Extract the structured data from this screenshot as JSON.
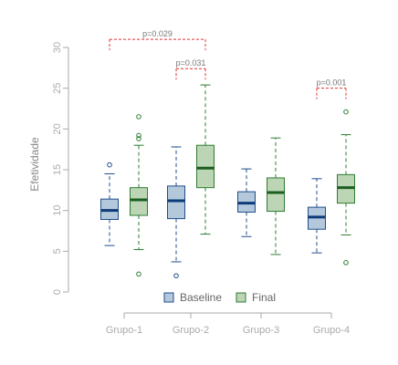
{
  "chart_data": {
    "type": "boxplot",
    "ylabel": "Efetividade",
    "ylim": [
      0,
      30
    ],
    "yticks": [
      0,
      5,
      10,
      15,
      20,
      25,
      30
    ],
    "categories": [
      "Grupo-1",
      "Grupo-2",
      "Grupo-3",
      "Grupo-4"
    ],
    "series": [
      {
        "name": "Baseline",
        "fill": "#b4c8dc",
        "stroke": "#1f4e8c",
        "median_color": "#0d3c78",
        "boxes": [
          {
            "whisker_low": 5.7,
            "q1": 8.9,
            "median": 10.0,
            "q3": 11.4,
            "whisker_high": 14.5,
            "outliers": [
              15.6
            ]
          },
          {
            "whisker_low": 3.7,
            "q1": 9.0,
            "median": 11.2,
            "q3": 13.0,
            "whisker_high": 17.8,
            "outliers": [
              2.0
            ]
          },
          {
            "whisker_low": 6.8,
            "q1": 9.8,
            "median": 10.9,
            "q3": 12.3,
            "whisker_high": 15.1,
            "outliers": []
          },
          {
            "whisker_low": 4.8,
            "q1": 7.7,
            "median": 9.2,
            "q3": 10.4,
            "whisker_high": 13.9,
            "outliers": []
          }
        ]
      },
      {
        "name": "Final",
        "fill": "#bcd5b5",
        "stroke": "#2e7d32",
        "median_color": "#1b5e20",
        "boxes": [
          {
            "whisker_low": 5.2,
            "q1": 9.4,
            "median": 11.3,
            "q3": 12.8,
            "whisker_high": 18.0,
            "outliers": [
              2.2,
              18.8,
              19.2,
              21.5
            ]
          },
          {
            "whisker_low": 7.1,
            "q1": 12.8,
            "median": 15.2,
            "q3": 18.0,
            "whisker_high": 25.4,
            "outliers": []
          },
          {
            "whisker_low": 4.6,
            "q1": 9.9,
            "median": 12.2,
            "q3": 14.0,
            "whisker_high": 18.9,
            "outliers": []
          },
          {
            "whisker_low": 7.0,
            "q1": 10.9,
            "median": 12.8,
            "q3": 14.4,
            "whisker_high": 19.3,
            "outliers": [
              3.6,
              22.1
            ]
          }
        ]
      }
    ],
    "annotations": [
      {
        "text": "p=0.029",
        "group": 0,
        "group_to": 1,
        "y": 31.0,
        "color": "#e03030"
      },
      {
        "text": "p=0.031",
        "group": 1,
        "group_to": 1,
        "y": 27.4,
        "color": "#e03030"
      },
      {
        "text": "p=0.001",
        "group": 3,
        "group_to": 3,
        "y": 25.0,
        "color": "#e03030"
      }
    ],
    "legend": {
      "placement": "bottom-center",
      "entries": [
        "Baseline",
        "Final"
      ]
    },
    "grid": false
  }
}
